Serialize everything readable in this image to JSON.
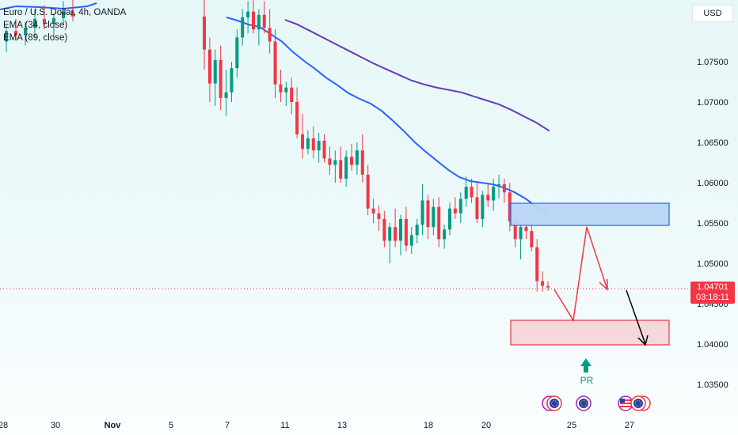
{
  "legend": {
    "title": "Euro / U.S. Dollar, 4h, OANDA",
    "ema34": "EMA (34, close)",
    "ema89": "EMA (89, close)"
  },
  "currency_label": "USD",
  "price_tag": {
    "price": "1.04701",
    "countdown": "03:18:11"
  },
  "event_label": "PR",
  "colors": {
    "up": "#089981",
    "down": "#f23645",
    "ema34": "#2962ff",
    "ema89": "#673ab7",
    "resistance_zone_fill": "#bbd6f7",
    "resistance_zone_border": "#2962ff",
    "target_zone_fill": "#f7d6db",
    "target_zone_border": "#f23645",
    "projection": "#f23645",
    "final_arrow": "#000000"
  },
  "chart_data": {
    "type": "candlestick",
    "symbol": "Euro / U.S. Dollar",
    "timeframe": "4h",
    "source": "OANDA",
    "y_axis": {
      "labels": [
        "1.07500",
        "1.07000",
        "1.06500",
        "1.06000",
        "1.05500",
        "1.05000",
        "1.04500",
        "1.04000",
        "1.03500"
      ],
      "range": [
        1.0315,
        1.0805
      ]
    },
    "x_axis": {
      "labels": [
        "28",
        "30",
        "Nov",
        "5",
        "7",
        "11",
        "13",
        "18",
        "20",
        "25",
        "27"
      ],
      "range": [
        "2024-10-28",
        "2024-11-27"
      ]
    },
    "current_price": 1.04701,
    "candles": [
      [
        1.0775,
        1.0795,
        1.0762,
        1.0788
      ],
      [
        1.0788,
        1.0803,
        1.0776,
        1.0783
      ],
      [
        1.0783,
        1.0799,
        1.077,
        1.0792
      ],
      [
        1.0792,
        1.0815,
        1.078,
        1.0803
      ],
      [
        1.0803,
        1.082,
        1.079,
        1.0797
      ],
      [
        1.0797,
        1.081,
        1.0782,
        1.0804
      ],
      [
        1.0804,
        1.0825,
        1.0795,
        1.0812
      ],
      [
        1.0812,
        1.0828,
        1.08,
        1.0806
      ],
      [
        1.0806,
        1.084,
        1.074,
        1.0765
      ],
      [
        1.0765,
        1.078,
        1.07,
        1.0723
      ],
      [
        1.0723,
        1.0765,
        1.0695,
        1.0752
      ],
      [
        1.0752,
        1.077,
        1.069,
        1.0705
      ],
      [
        1.0705,
        1.074,
        1.0683,
        1.0712
      ],
      [
        1.0712,
        1.075,
        1.07,
        1.0742
      ],
      [
        1.0742,
        1.079,
        1.073,
        1.078
      ],
      [
        1.078,
        1.0815,
        1.077,
        1.0805
      ],
      [
        1.0805,
        1.0825,
        1.0785,
        1.0812
      ],
      [
        1.0812,
        1.083,
        1.0785,
        1.079
      ],
      [
        1.079,
        1.0815,
        1.077,
        1.0808
      ],
      [
        1.0808,
        1.0825,
        1.0785,
        1.0792
      ],
      [
        1.0792,
        1.0815,
        1.076,
        1.0775
      ],
      [
        1.0775,
        1.079,
        1.0705,
        1.0722
      ],
      [
        1.0722,
        1.074,
        1.07,
        1.0712
      ],
      [
        1.0712,
        1.0725,
        1.0695,
        1.0718
      ],
      [
        1.0718,
        1.073,
        1.0685,
        1.07
      ],
      [
        1.07,
        1.0718,
        1.0655,
        1.066
      ],
      [
        1.066,
        1.0685,
        1.063,
        1.0642
      ],
      [
        1.0642,
        1.0665,
        1.0635,
        1.0655
      ],
      [
        1.0655,
        1.067,
        1.063,
        1.064
      ],
      [
        1.064,
        1.0662,
        1.0625,
        1.0652
      ],
      [
        1.0652,
        1.066,
        1.0625,
        1.063
      ],
      [
        1.063,
        1.0645,
        1.061,
        1.0622
      ],
      [
        1.0622,
        1.064,
        1.06,
        1.0628
      ],
      [
        1.0628,
        1.0645,
        1.06,
        1.0605
      ],
      [
        1.0605,
        1.064,
        1.0595,
        1.0632
      ],
      [
        1.0632,
        1.0648,
        1.0615,
        1.0622
      ],
      [
        1.0622,
        1.065,
        1.061,
        1.064
      ],
      [
        1.064,
        1.066,
        1.06,
        1.061
      ],
      [
        1.061,
        1.0622,
        1.056,
        1.0568
      ],
      [
        1.0568,
        1.058,
        1.055,
        1.0562
      ],
      [
        1.0562,
        1.0572,
        1.054,
        1.0555
      ],
      [
        1.0555,
        1.0565,
        1.052,
        1.0528
      ],
      [
        1.0528,
        1.055,
        1.05,
        1.0545
      ],
      [
        1.0545,
        1.0568,
        1.052,
        1.0528
      ],
      [
        1.0528,
        1.056,
        1.051,
        1.0555
      ],
      [
        1.0555,
        1.057,
        1.0515,
        1.0522
      ],
      [
        1.0522,
        1.0545,
        1.0512,
        1.0535
      ],
      [
        1.0535,
        1.0555,
        1.0525,
        1.0548
      ],
      [
        1.0548,
        1.0598,
        1.0535,
        1.0578
      ],
      [
        1.0578,
        1.0585,
        1.053,
        1.0545
      ],
      [
        1.0545,
        1.058,
        1.0535,
        1.057
      ],
      [
        1.057,
        1.0582,
        1.052,
        1.053
      ],
      [
        1.053,
        1.0548,
        1.0518,
        1.0542
      ],
      [
        1.0542,
        1.0575,
        1.0535,
        1.0568
      ],
      [
        1.0568,
        1.0582,
        1.0555,
        1.0562
      ],
      [
        1.0562,
        1.0588,
        1.055,
        1.058
      ],
      [
        1.058,
        1.0608,
        1.057,
        1.0595
      ],
      [
        1.0595,
        1.0605,
        1.0575,
        1.0582
      ],
      [
        1.0582,
        1.06,
        1.055,
        1.0555
      ],
      [
        1.0555,
        1.059,
        1.0545,
        1.0585
      ],
      [
        1.0585,
        1.0598,
        1.057,
        1.0578
      ],
      [
        1.0578,
        1.0605,
        1.0565,
        1.0595
      ],
      [
        1.0595,
        1.061,
        1.058,
        1.0598
      ],
      [
        1.0598,
        1.0605,
        1.0575,
        1.0588
      ],
      [
        1.0588,
        1.06,
        1.054,
        1.0552
      ],
      [
        1.0552,
        1.056,
        1.052,
        1.053
      ],
      [
        1.053,
        1.055,
        1.0505,
        1.0545
      ],
      [
        1.0545,
        1.0555,
        1.053,
        1.054
      ],
      [
        1.054,
        1.0552,
        1.0515,
        1.052
      ],
      [
        1.052,
        1.053,
        1.0465,
        1.0478
      ],
      [
        1.0478,
        1.049,
        1.0465,
        1.0472
      ],
      [
        1.0472,
        1.0478,
        1.0466,
        1.047
      ]
    ],
    "ema34": [
      [
        1.0799,
        1.0805
      ],
      [
        1.0785,
        1.0801
      ],
      [
        1.0786,
        1.0796
      ],
      [
        1.0788,
        1.0793
      ],
      [
        1.079,
        1.0784
      ],
      [
        1.0792,
        1.0775
      ],
      [
        1.0795,
        1.0762
      ],
      [
        1.0797,
        1.0751
      ],
      [
        1.0799,
        1.0741
      ],
      [
        1.0801,
        1.073
      ],
      [
        1.0803,
        1.0721
      ],
      [
        1.0805,
        1.0711
      ],
      [
        1.0807,
        1.0704
      ],
      [
        1.0808,
        1.0698
      ],
      [
        1.0809,
        1.0689
      ],
      [
        1.081,
        1.0677
      ],
      [
        1.0811,
        1.0664
      ],
      [
        1.0812,
        1.065
      ],
      [
        1.0813,
        1.0638
      ],
      [
        1.0814,
        1.0627
      ],
      [
        1.0815,
        1.0616
      ],
      [
        1.0816,
        1.0607
      ],
      [
        1.0817,
        1.0602
      ],
      [
        1.0818,
        1.06
      ],
      [
        1.0819,
        1.0598
      ],
      [
        1.082,
        1.0594
      ],
      [
        1.0821,
        1.0588
      ],
      [
        1.0822,
        1.058
      ],
      [
        1.0823,
        1.057
      ],
      [
        1.0824,
        1.0563
      ]
    ],
    "ema89": [
      [
        1.0823,
        1.0802
      ],
      [
        1.0824,
        1.0796
      ],
      [
        1.0825,
        1.0788
      ],
      [
        1.0826,
        1.078
      ],
      [
        1.0827,
        1.0772
      ],
      [
        1.0828,
        1.0764
      ],
      [
        1.0829,
        1.0756
      ],
      [
        1.083,
        1.0748
      ],
      [
        1.0831,
        1.0741
      ],
      [
        1.0832,
        1.0734
      ],
      [
        1.0833,
        1.0727
      ],
      [
        1.0834,
        1.0722
      ],
      [
        1.0835,
        1.0718
      ],
      [
        1.0836,
        1.0715
      ],
      [
        1.0837,
        1.0712
      ],
      [
        1.0838,
        1.0707
      ],
      [
        1.0839,
        1.0702
      ],
      [
        1.084,
        1.0697
      ],
      [
        1.0841,
        1.069
      ],
      [
        1.0842,
        1.0682
      ],
      [
        1.0843,
        1.0674
      ],
      [
        1.0844,
        1.0664
      ]
    ],
    "annotations": {
      "resistance_zone": {
        "price_range": [
          1.0547,
          1.0575
        ],
        "date_range": [
          "2024-11-21",
          "2024-11-28"
        ]
      },
      "target_zone": {
        "price_range": [
          1.0401,
          1.0431
        ],
        "date_range": [
          "2024-11-21",
          "2024-11-28"
        ]
      },
      "projection_path": [
        [
          "2024-11-22",
          1.0471
        ],
        [
          "2024-11-23",
          1.0433
        ],
        [
          "2024-11-24",
          1.0545
        ],
        [
          "2024-11-25",
          1.0468
        ]
      ],
      "final_arrow": [
        [
          "2024-11-25",
          1.0467
        ],
        [
          "2024-11-26",
          1.04
        ]
      ],
      "event_marker": {
        "label": "PR",
        "direction": "up"
      },
      "event_icons": [
        {
          "type": "eu-flag-double"
        },
        {
          "type": "eu-flag"
        },
        {
          "type": "us-eu-flag"
        }
      ]
    }
  }
}
